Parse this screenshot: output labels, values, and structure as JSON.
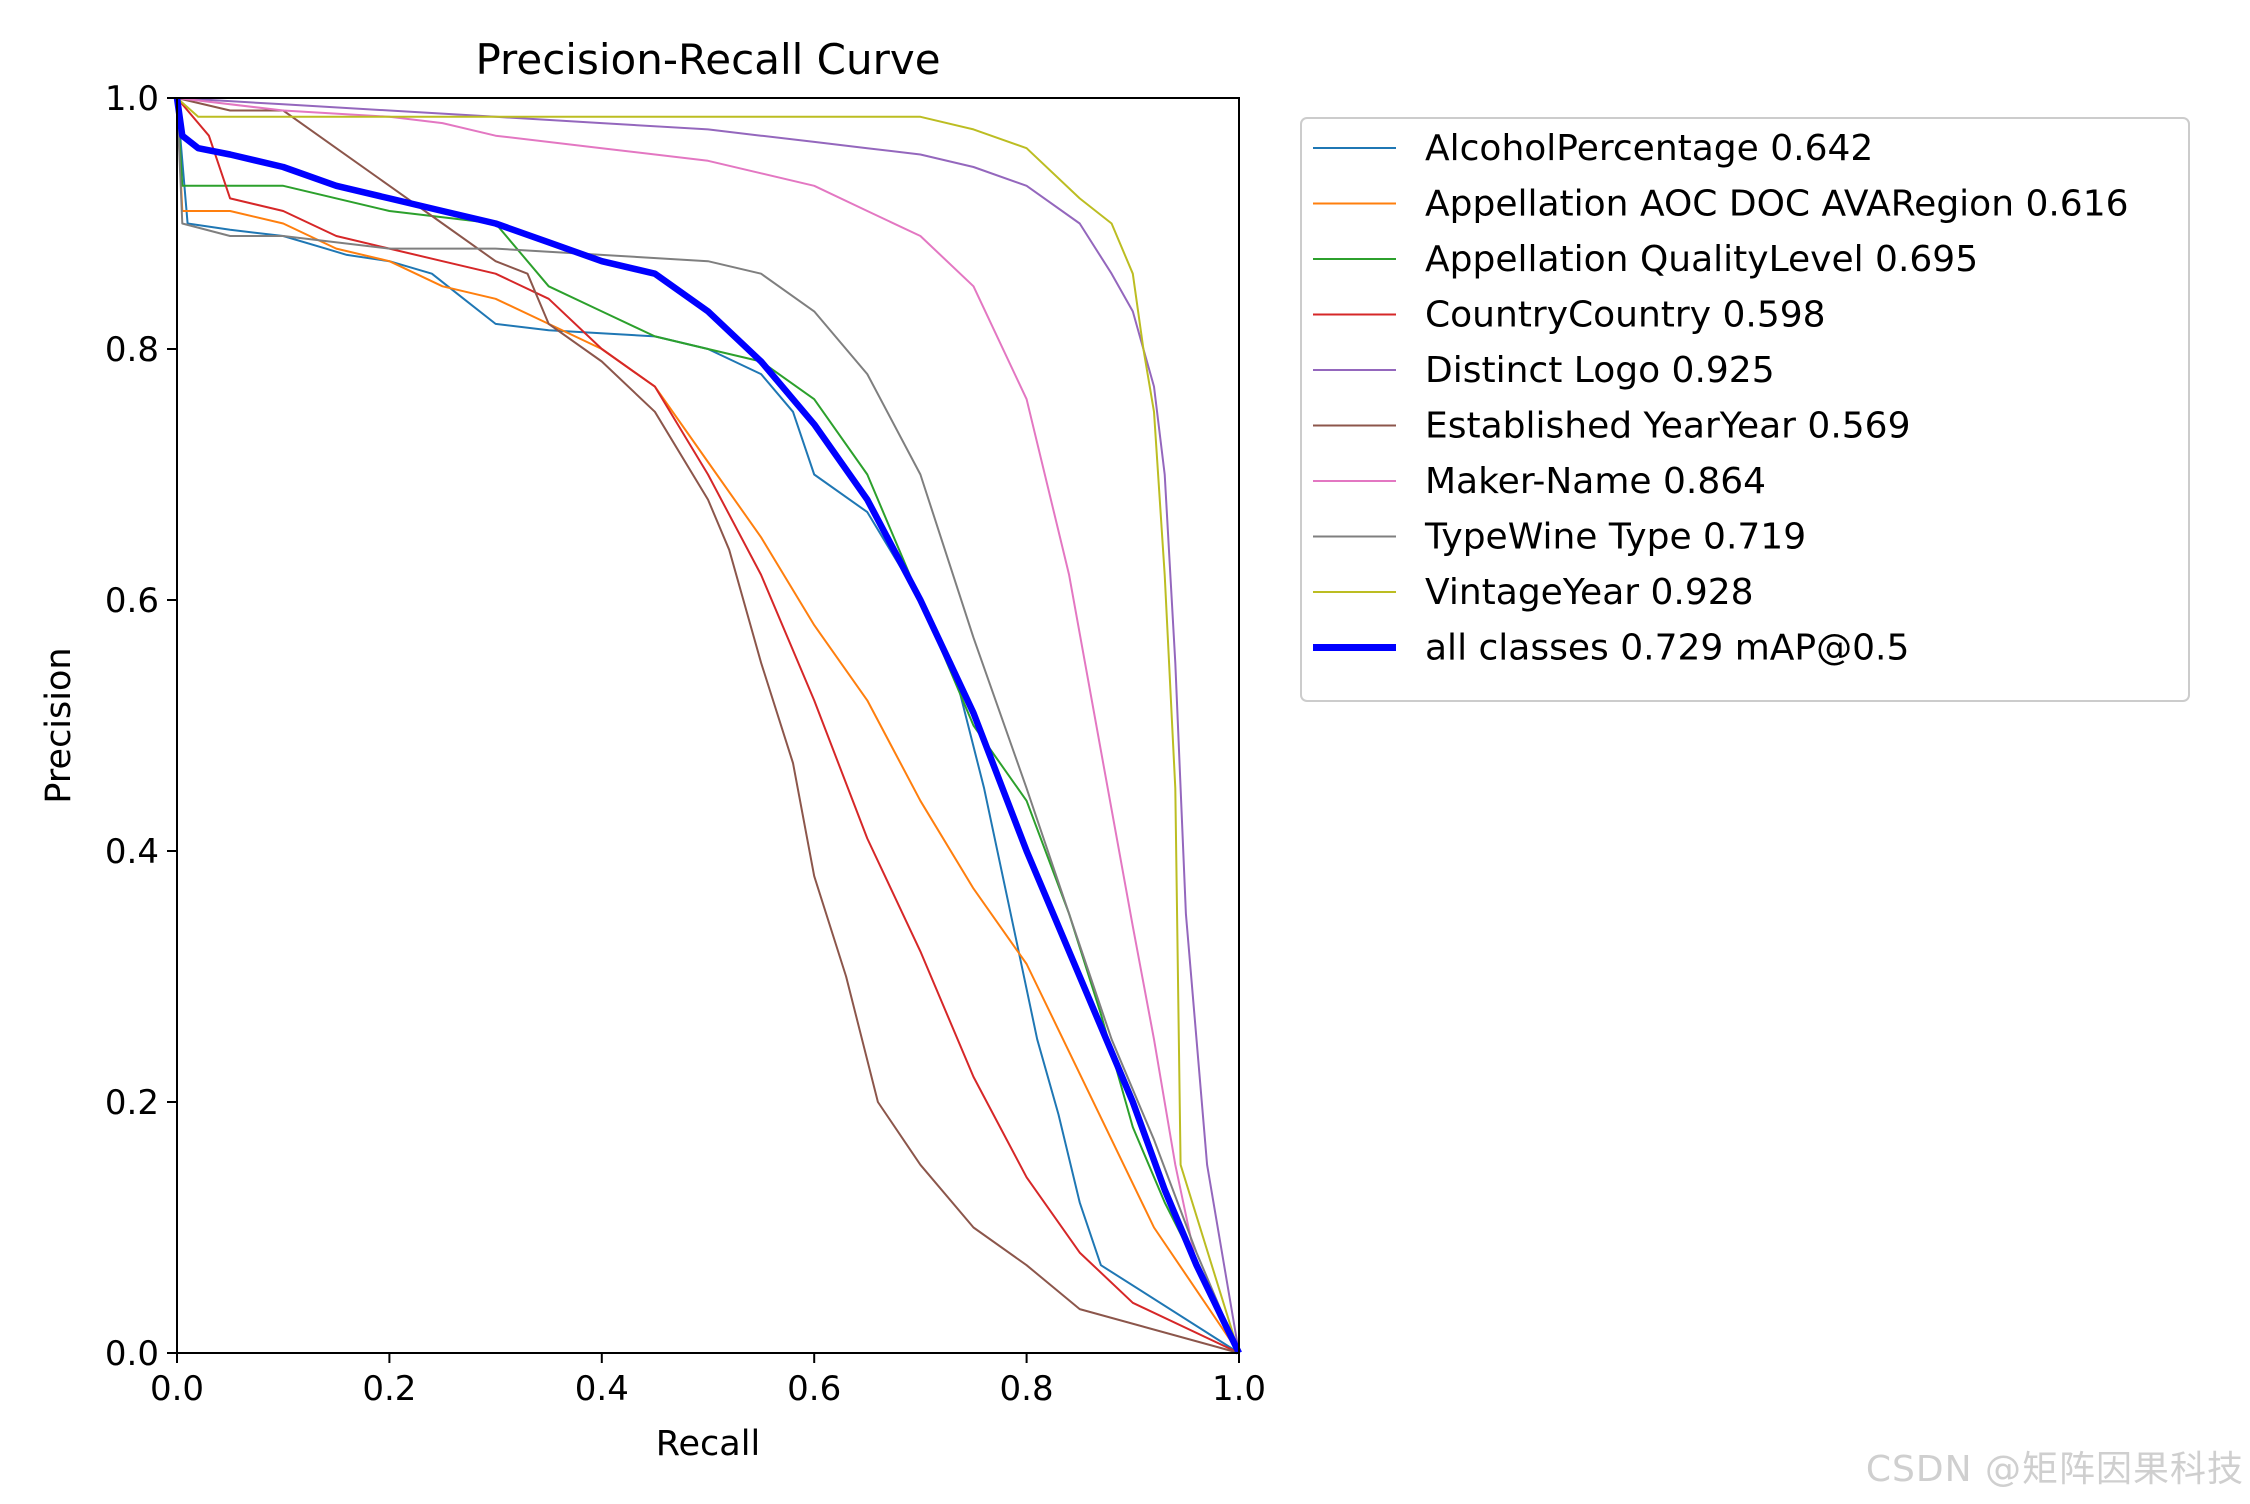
{
  "chart_data": {
    "type": "line",
    "title": "Precision-Recall Curve",
    "xlabel": "Recall",
    "ylabel": "Precision",
    "xlim": [
      0,
      1
    ],
    "ylim": [
      0,
      1
    ],
    "xticks": [
      "0.0",
      "0.2",
      "0.4",
      "0.6",
      "0.8",
      "1.0"
    ],
    "yticks": [
      "0.0",
      "0.2",
      "0.4",
      "0.6",
      "0.8",
      "1.0"
    ],
    "grid": false,
    "legend_position": "outside-right",
    "series": [
      {
        "name": "AlcoholPercentage 0.642",
        "color": "#1f77b4",
        "width": 2,
        "points": [
          [
            0,
            1.0
          ],
          [
            0.005,
            0.95
          ],
          [
            0.01,
            0.9
          ],
          [
            0.05,
            0.895
          ],
          [
            0.1,
            0.89
          ],
          [
            0.14,
            0.88
          ],
          [
            0.16,
            0.875
          ],
          [
            0.2,
            0.87
          ],
          [
            0.24,
            0.86
          ],
          [
            0.27,
            0.84
          ],
          [
            0.3,
            0.82
          ],
          [
            0.35,
            0.815
          ],
          [
            0.45,
            0.81
          ],
          [
            0.5,
            0.8
          ],
          [
            0.55,
            0.78
          ],
          [
            0.58,
            0.75
          ],
          [
            0.6,
            0.7
          ],
          [
            0.65,
            0.67
          ],
          [
            0.7,
            0.6
          ],
          [
            0.73,
            0.55
          ],
          [
            0.76,
            0.45
          ],
          [
            0.79,
            0.33
          ],
          [
            0.81,
            0.25
          ],
          [
            0.83,
            0.19
          ],
          [
            0.85,
            0.12
          ],
          [
            0.87,
            0.07
          ],
          [
            1.0,
            0.0
          ]
        ]
      },
      {
        "name": "Appellation AOC DOC AVARegion 0.616",
        "color": "#ff7f0e",
        "width": 2,
        "points": [
          [
            0,
            1.0
          ],
          [
            0.005,
            0.91
          ],
          [
            0.05,
            0.91
          ],
          [
            0.1,
            0.9
          ],
          [
            0.15,
            0.88
          ],
          [
            0.2,
            0.87
          ],
          [
            0.25,
            0.85
          ],
          [
            0.3,
            0.84
          ],
          [
            0.35,
            0.82
          ],
          [
            0.4,
            0.8
          ],
          [
            0.45,
            0.77
          ],
          [
            0.5,
            0.71
          ],
          [
            0.55,
            0.65
          ],
          [
            0.6,
            0.58
          ],
          [
            0.65,
            0.52
          ],
          [
            0.7,
            0.44
          ],
          [
            0.75,
            0.37
          ],
          [
            0.8,
            0.31
          ],
          [
            0.84,
            0.24
          ],
          [
            0.88,
            0.17
          ],
          [
            0.92,
            0.1
          ],
          [
            1.0,
            0.0
          ]
        ]
      },
      {
        "name": "Appellation QualityLevel 0.695",
        "color": "#2ca02c",
        "width": 2,
        "points": [
          [
            0,
            1.0
          ],
          [
            0.005,
            0.93
          ],
          [
            0.05,
            0.93
          ],
          [
            0.1,
            0.93
          ],
          [
            0.2,
            0.91
          ],
          [
            0.3,
            0.9
          ],
          [
            0.35,
            0.85
          ],
          [
            0.4,
            0.83
          ],
          [
            0.45,
            0.81
          ],
          [
            0.5,
            0.8
          ],
          [
            0.55,
            0.79
          ],
          [
            0.6,
            0.76
          ],
          [
            0.65,
            0.7
          ],
          [
            0.7,
            0.6
          ],
          [
            0.75,
            0.5
          ],
          [
            0.8,
            0.44
          ],
          [
            0.84,
            0.35
          ],
          [
            0.87,
            0.27
          ],
          [
            0.9,
            0.18
          ],
          [
            0.93,
            0.12
          ],
          [
            0.96,
            0.07
          ],
          [
            1.0,
            0.0
          ]
        ]
      },
      {
        "name": "CountryCountry 0.598",
        "color": "#d62728",
        "width": 2,
        "points": [
          [
            0,
            1.0
          ],
          [
            0.03,
            0.97
          ],
          [
            0.05,
            0.92
          ],
          [
            0.1,
            0.91
          ],
          [
            0.15,
            0.89
          ],
          [
            0.2,
            0.88
          ],
          [
            0.25,
            0.87
          ],
          [
            0.3,
            0.86
          ],
          [
            0.35,
            0.84
          ],
          [
            0.4,
            0.8
          ],
          [
            0.45,
            0.77
          ],
          [
            0.5,
            0.7
          ],
          [
            0.55,
            0.62
          ],
          [
            0.6,
            0.52
          ],
          [
            0.65,
            0.41
          ],
          [
            0.7,
            0.32
          ],
          [
            0.75,
            0.22
          ],
          [
            0.8,
            0.14
          ],
          [
            0.85,
            0.08
          ],
          [
            0.9,
            0.04
          ],
          [
            1.0,
            0.0
          ]
        ]
      },
      {
        "name": "Distinct Logo 0.925",
        "color": "#9467bd",
        "width": 2,
        "points": [
          [
            0,
            1.0
          ],
          [
            0.1,
            0.995
          ],
          [
            0.2,
            0.99
          ],
          [
            0.3,
            0.985
          ],
          [
            0.4,
            0.98
          ],
          [
            0.5,
            0.975
          ],
          [
            0.55,
            0.97
          ],
          [
            0.6,
            0.965
          ],
          [
            0.65,
            0.96
          ],
          [
            0.7,
            0.955
          ],
          [
            0.75,
            0.945
          ],
          [
            0.8,
            0.93
          ],
          [
            0.85,
            0.9
          ],
          [
            0.88,
            0.86
          ],
          [
            0.9,
            0.83
          ],
          [
            0.92,
            0.77
          ],
          [
            0.93,
            0.7
          ],
          [
            0.94,
            0.55
          ],
          [
            0.95,
            0.35
          ],
          [
            0.97,
            0.15
          ],
          [
            1.0,
            0.0
          ]
        ]
      },
      {
        "name": "Established YearYear 0.569",
        "color": "#8c564b",
        "width": 2,
        "points": [
          [
            0,
            1.0
          ],
          [
            0.05,
            0.99
          ],
          [
            0.1,
            0.99
          ],
          [
            0.15,
            0.96
          ],
          [
            0.2,
            0.93
          ],
          [
            0.25,
            0.9
          ],
          [
            0.3,
            0.87
          ],
          [
            0.33,
            0.86
          ],
          [
            0.35,
            0.82
          ],
          [
            0.4,
            0.79
          ],
          [
            0.45,
            0.75
          ],
          [
            0.5,
            0.68
          ],
          [
            0.52,
            0.64
          ],
          [
            0.55,
            0.55
          ],
          [
            0.58,
            0.47
          ],
          [
            0.6,
            0.38
          ],
          [
            0.63,
            0.3
          ],
          [
            0.66,
            0.2
          ],
          [
            0.7,
            0.15
          ],
          [
            0.75,
            0.1
          ],
          [
            0.8,
            0.07
          ],
          [
            0.85,
            0.035
          ],
          [
            1.0,
            0.0
          ]
        ]
      },
      {
        "name": "Maker-Name 0.864",
        "color": "#e377c2",
        "width": 2,
        "points": [
          [
            0,
            1.0
          ],
          [
            0.1,
            0.99
          ],
          [
            0.2,
            0.985
          ],
          [
            0.25,
            0.98
          ],
          [
            0.3,
            0.97
          ],
          [
            0.4,
            0.96
          ],
          [
            0.5,
            0.95
          ],
          [
            0.55,
            0.94
          ],
          [
            0.6,
            0.93
          ],
          [
            0.65,
            0.91
          ],
          [
            0.7,
            0.89
          ],
          [
            0.75,
            0.85
          ],
          [
            0.8,
            0.76
          ],
          [
            0.84,
            0.62
          ],
          [
            0.87,
            0.48
          ],
          [
            0.9,
            0.34
          ],
          [
            0.92,
            0.25
          ],
          [
            0.94,
            0.15
          ],
          [
            0.96,
            0.07
          ],
          [
            1.0,
            0.0
          ]
        ]
      },
      {
        "name": "TypeWine Type 0.719",
        "color": "#7f7f7f",
        "width": 2,
        "points": [
          [
            0,
            1.0
          ],
          [
            0.005,
            0.9
          ],
          [
            0.05,
            0.89
          ],
          [
            0.1,
            0.89
          ],
          [
            0.2,
            0.88
          ],
          [
            0.3,
            0.88
          ],
          [
            0.4,
            0.875
          ],
          [
            0.5,
            0.87
          ],
          [
            0.55,
            0.86
          ],
          [
            0.6,
            0.83
          ],
          [
            0.65,
            0.78
          ],
          [
            0.7,
            0.7
          ],
          [
            0.75,
            0.57
          ],
          [
            0.8,
            0.45
          ],
          [
            0.84,
            0.35
          ],
          [
            0.88,
            0.25
          ],
          [
            0.92,
            0.17
          ],
          [
            0.96,
            0.08
          ],
          [
            1.0,
            0.0
          ]
        ]
      },
      {
        "name": "VintageYear 0.928",
        "color": "#bcbd22",
        "width": 2,
        "points": [
          [
            0,
            1.0
          ],
          [
            0.02,
            0.985
          ],
          [
            0.1,
            0.985
          ],
          [
            0.2,
            0.985
          ],
          [
            0.3,
            0.985
          ],
          [
            0.4,
            0.985
          ],
          [
            0.5,
            0.985
          ],
          [
            0.6,
            0.985
          ],
          [
            0.7,
            0.985
          ],
          [
            0.75,
            0.975
          ],
          [
            0.8,
            0.96
          ],
          [
            0.85,
            0.92
          ],
          [
            0.88,
            0.9
          ],
          [
            0.9,
            0.86
          ],
          [
            0.91,
            0.8
          ],
          [
            0.92,
            0.75
          ],
          [
            0.93,
            0.62
          ],
          [
            0.94,
            0.45
          ],
          [
            0.945,
            0.15
          ],
          [
            1.0,
            0.0
          ]
        ]
      },
      {
        "name": "all classes 0.729 mAP@0.5",
        "color": "#0000ff",
        "width": 6.5,
        "points": [
          [
            0,
            1.0
          ],
          [
            0.005,
            0.97
          ],
          [
            0.02,
            0.96
          ],
          [
            0.05,
            0.955
          ],
          [
            0.1,
            0.945
          ],
          [
            0.15,
            0.93
          ],
          [
            0.2,
            0.92
          ],
          [
            0.25,
            0.91
          ],
          [
            0.3,
            0.9
          ],
          [
            0.35,
            0.885
          ],
          [
            0.4,
            0.87
          ],
          [
            0.45,
            0.86
          ],
          [
            0.5,
            0.83
          ],
          [
            0.55,
            0.79
          ],
          [
            0.6,
            0.74
          ],
          [
            0.65,
            0.68
          ],
          [
            0.7,
            0.6
          ],
          [
            0.75,
            0.51
          ],
          [
            0.8,
            0.4
          ],
          [
            0.85,
            0.3
          ],
          [
            0.9,
            0.2
          ],
          [
            0.93,
            0.13
          ],
          [
            0.96,
            0.07
          ],
          [
            1.0,
            0.0
          ]
        ]
      }
    ]
  },
  "watermark": "CSDN @矩阵因果科技"
}
